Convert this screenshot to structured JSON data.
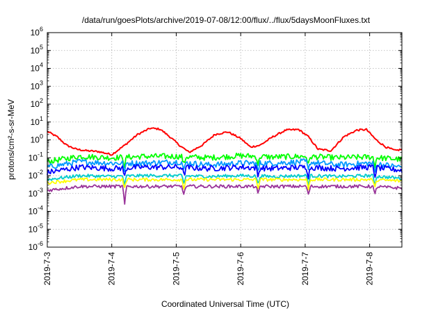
{
  "chart_data": {
    "type": "line",
    "title": "/data/run/goesPlots/archive/2019-07-08/12:00/flux/../flux/5daysMoonFluxes.txt",
    "xlabel": "Coordinated Universal Time (UTC)",
    "ylabel": "protons/cm²-s-sr-MeV",
    "y_scale": "log",
    "ylim": [
      1e-06,
      1000000.0
    ],
    "xlim": [
      "2019-07-03 00:00",
      "2019-07-08 12:00"
    ],
    "grid": true,
    "x_ticks": [
      "2019-7-3",
      "2019-7-4",
      "2019-7-5",
      "2019-7-6",
      "2019-7-7",
      "2019-7-8"
    ],
    "y_ticks": [
      {
        "base": "10",
        "exp": "-6"
      },
      {
        "base": "10",
        "exp": "-5"
      },
      {
        "base": "10",
        "exp": "-4"
      },
      {
        "base": "10",
        "exp": "-3"
      },
      {
        "base": "10",
        "exp": "-2"
      },
      {
        "base": "10",
        "exp": "-1"
      },
      {
        "base": "10",
        "exp": "0"
      },
      {
        "base": "10",
        "exp": "1"
      },
      {
        "base": "10",
        "exp": "2"
      },
      {
        "base": "10",
        "exp": "3"
      },
      {
        "base": "10",
        "exp": "4"
      },
      {
        "base": "10",
        "exp": "5"
      },
      {
        "base": "10",
        "exp": "6"
      }
    ],
    "x_units": "days from 2019-07-03 00:00 UTC",
    "series": [
      {
        "color": "#ff0000",
        "x": [
          0,
          0.15,
          0.3,
          0.45,
          0.6,
          0.8,
          1.0,
          1.2,
          1.4,
          1.6,
          1.75,
          1.9,
          2.05,
          2.2,
          2.4,
          2.6,
          2.8,
          3.0,
          3.15,
          3.3,
          3.5,
          3.7,
          3.9,
          4.05,
          4.2,
          4.4,
          4.6,
          4.8,
          4.95,
          5.1,
          5.25,
          5.4,
          5.5
        ],
        "y": [
          3.0,
          1.5,
          0.5,
          0.3,
          0.25,
          0.22,
          0.15,
          0.5,
          2.0,
          4.5,
          4.0,
          1.5,
          0.5,
          0.2,
          0.5,
          2.0,
          2.8,
          1.2,
          0.4,
          0.5,
          1.5,
          3.5,
          3.8,
          1.5,
          0.3,
          0.25,
          1.5,
          3.5,
          3.8,
          1.0,
          0.4,
          0.25,
          0.3
        ]
      },
      {
        "color": "#00ff00",
        "x": [
          0,
          0.5,
          1.0,
          1.5,
          2.0,
          2.5,
          3.0,
          3.5,
          4.0,
          4.5,
          5.0,
          5.5
        ],
        "y": [
          0.06,
          0.12,
          0.1,
          0.12,
          0.12,
          0.1,
          0.13,
          0.11,
          0.12,
          0.1,
          0.11,
          0.08
        ]
      },
      {
        "color": "#0099ff",
        "x": [
          0,
          0.5,
          1.0,
          1.5,
          2.0,
          2.5,
          3.0,
          3.5,
          4.0,
          4.5,
          5.0,
          5.5
        ],
        "y": [
          0.03,
          0.06,
          0.05,
          0.05,
          0.06,
          0.04,
          0.05,
          0.05,
          0.06,
          0.04,
          0.05,
          0.03
        ]
      },
      {
        "color": "#0000ff",
        "x": [
          0,
          0.5,
          1.0,
          1.5,
          2.0,
          2.5,
          3.0,
          3.5,
          4.0,
          4.5,
          5.0,
          5.5
        ],
        "y": [
          0.015,
          0.03,
          0.025,
          0.03,
          0.03,
          0.025,
          0.03,
          0.025,
          0.03,
          0.025,
          0.03,
          0.02
        ]
      },
      {
        "color": "#00cccc",
        "x": [
          0,
          0.5,
          1.0,
          1.5,
          2.0,
          2.5,
          3.0,
          3.5,
          4.0,
          4.5,
          5.0,
          5.5
        ],
        "y": [
          0.006,
          0.01,
          0.009,
          0.01,
          0.01,
          0.009,
          0.01,
          0.009,
          0.01,
          0.009,
          0.01,
          0.007
        ]
      },
      {
        "color": "#ffff00",
        "x": [
          0,
          0.5,
          1.0,
          1.5,
          2.0,
          2.5,
          3.0,
          3.5,
          4.0,
          4.5,
          5.0,
          5.5
        ],
        "y": [
          0.004,
          0.006,
          0.006,
          0.006,
          0.006,
          0.006,
          0.006,
          0.006,
          0.006,
          0.006,
          0.006,
          0.005
        ]
      },
      {
        "color": "#993399",
        "x": [
          0,
          0.5,
          1.0,
          1.5,
          2.0,
          2.5,
          3.0,
          3.5,
          4.0,
          4.5,
          5.0,
          5.5
        ],
        "y": [
          0.0015,
          0.0025,
          0.0025,
          0.0025,
          0.0025,
          0.0025,
          0.0025,
          0.0025,
          0.0025,
          0.0025,
          0.0025,
          0.002
        ]
      }
    ]
  }
}
